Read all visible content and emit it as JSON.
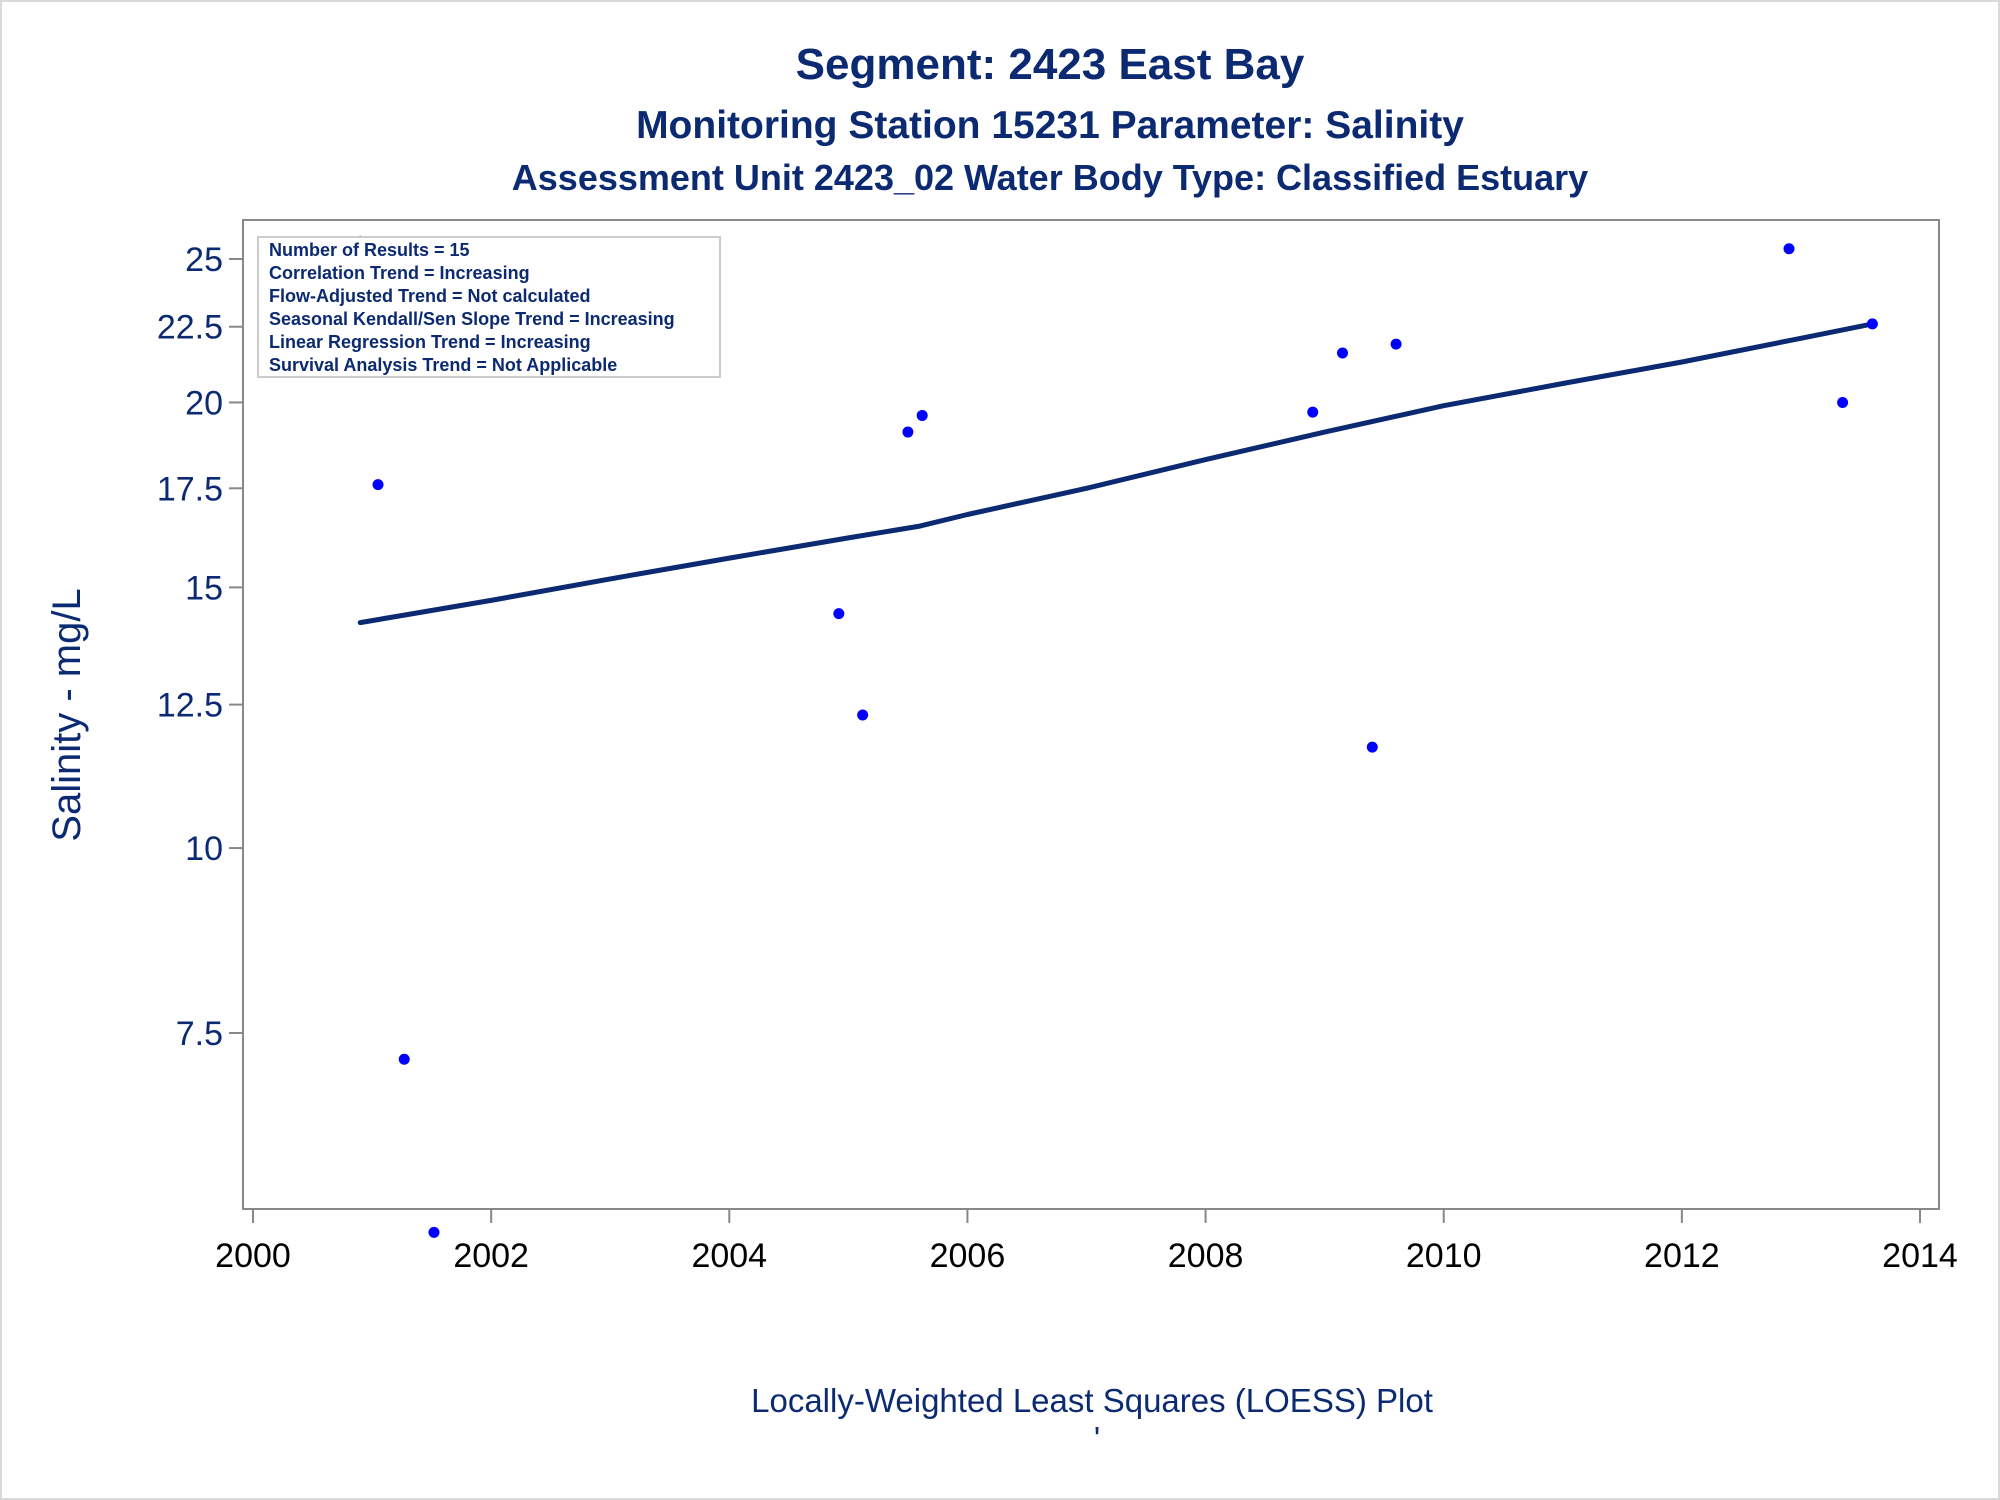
{
  "chart_data": {
    "type": "scatter",
    "title": "Segment: 2423  East Bay",
    "subtitle1": "Monitoring Station 15231 Parameter: Salinity",
    "subtitle2": "Assessment Unit 2423_02   Water Body Type: Classified Estuary",
    "xlabel": "",
    "ylabel": "Salinity - mg/L",
    "footnote": "Locally-Weighted Least Squares (LOESS) Plot",
    "footnote_mark": "'",
    "y_scale": "log",
    "xlim": [
      2000,
      2014
    ],
    "ylim": [
      5.5,
      26.2
    ],
    "x_ticks": [
      "2000",
      "2002",
      "2004",
      "2006",
      "2008",
      "2010",
      "2012",
      "2014"
    ],
    "y_ticks": [
      "25",
      "22.5",
      "20",
      "17.5",
      "15",
      "12.5",
      "10",
      "7.5"
    ],
    "y_tick_values": [
      25,
      22.5,
      20,
      17.5,
      15,
      12.5,
      10,
      7.5
    ],
    "grid": false,
    "legend": "none",
    "points_color": "#0000ff",
    "line_color": "#0b2a72",
    "series": [
      {
        "kind": "points",
        "x": [
          2000.9,
          2001.05,
          2001.27,
          2001.52,
          2004.92,
          2005.12,
          2005.5,
          2005.62,
          2008.9,
          2009.15,
          2009.4,
          2009.6,
          2012.9,
          2013.35,
          2013.6
        ],
        "y": [
          25.7,
          17.6,
          7.2,
          5.5,
          14.4,
          12.3,
          19.1,
          19.6,
          19.7,
          21.6,
          11.7,
          21.9,
          25.4,
          20.0,
          22.6
        ]
      },
      {
        "kind": "line",
        "x": [
          2000.9,
          2002,
          2003,
          2004,
          2005,
          2005.6,
          2006,
          2007,
          2008,
          2009,
          2010,
          2011,
          2012,
          2013,
          2013.6
        ],
        "y": [
          14.2,
          14.7,
          15.2,
          15.7,
          16.2,
          16.5,
          16.8,
          17.5,
          18.3,
          19.1,
          19.9,
          20.6,
          21.3,
          22.1,
          22.6
        ]
      }
    ]
  },
  "inset": {
    "lines": [
      "Number of Results = 15",
      "Correlation Trend = Increasing",
      "Flow-Adjusted Trend = Not calculated",
      "Seasonal Kendall/Sen Slope Trend = Increasing",
      "Linear Regression Trend = Increasing",
      "Survival Analysis Trend = Not Applicable"
    ]
  }
}
